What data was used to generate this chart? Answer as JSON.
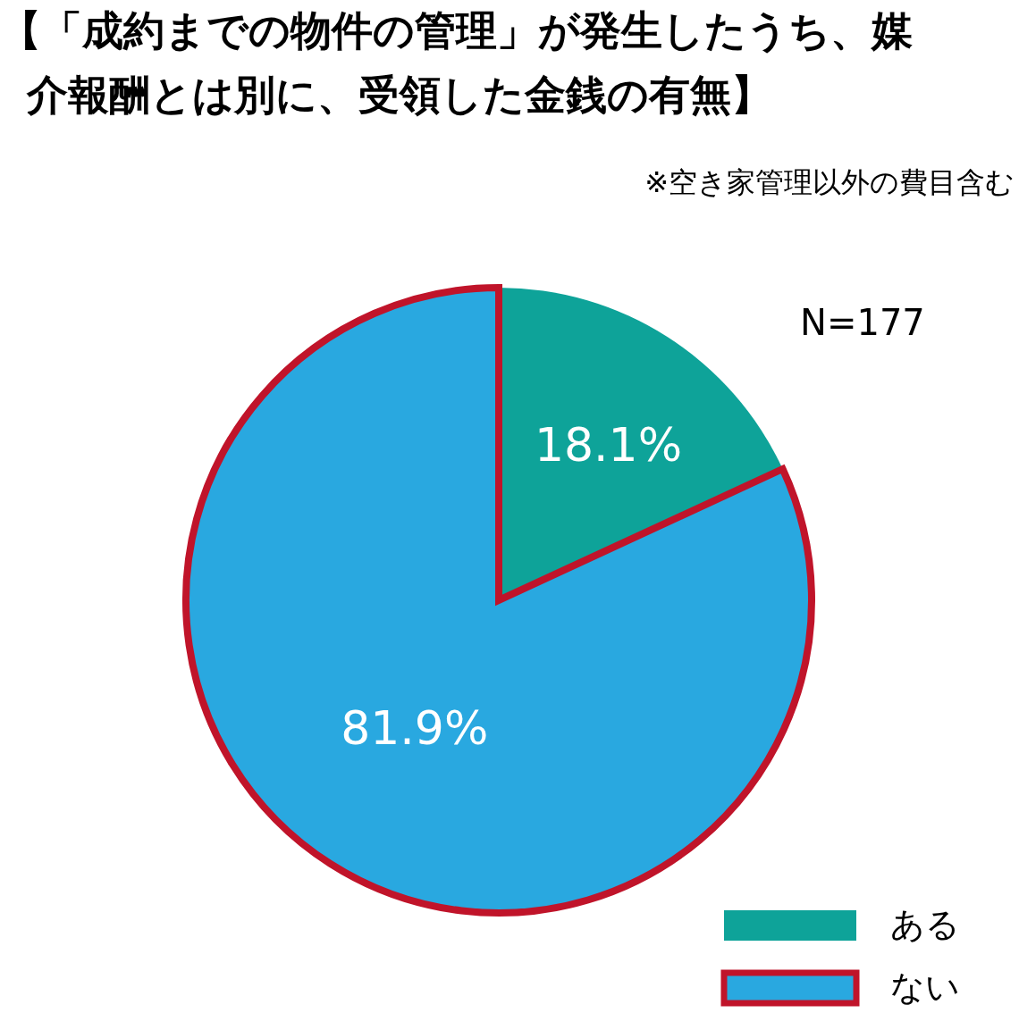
{
  "chart_data": {
    "type": "pie",
    "title": "【「成約までの物件の管理」が発生したうち、媒介報酬とは別に、受領した金銭の有無】",
    "subtitle": "※空き家管理以外の費目含む",
    "annotations": [
      "N=177"
    ],
    "categories": [
      "ある",
      "ない"
    ],
    "values": [
      18.1,
      81.9
    ],
    "colors": [
      "#0ea399",
      "#29a8e0"
    ],
    "value_labels": [
      "18.1%",
      "81.9%"
    ],
    "legend": "bottom right"
  }
}
